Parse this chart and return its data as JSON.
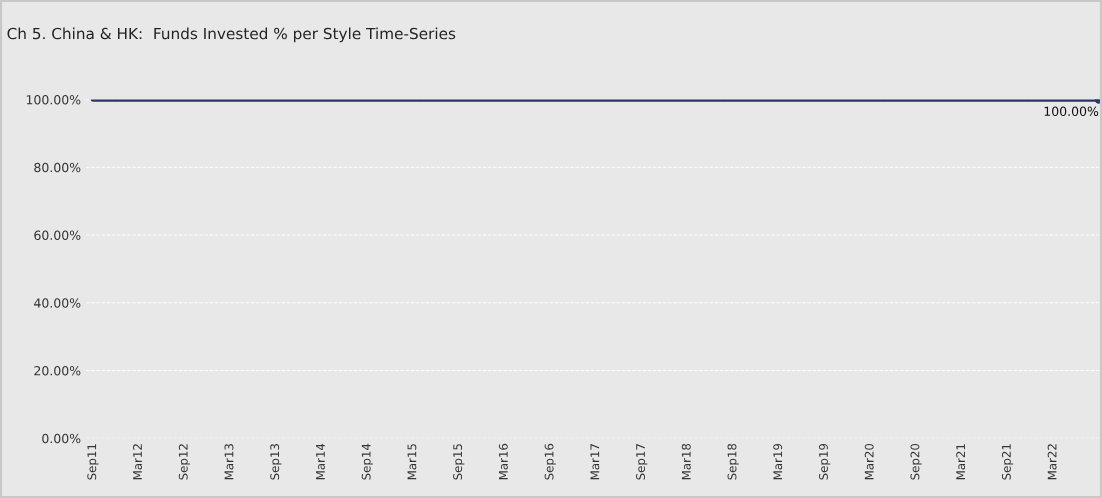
{
  "chart_data": {
    "type": "line",
    "title": "Ch 5. China & HK:  Funds Invested % per Style Time-Series",
    "categories": [
      "Sep11",
      "Mar12",
      "Sep12",
      "Mar13",
      "Sep13",
      "Mar14",
      "Sep14",
      "Mar15",
      "Sep15",
      "Mar16",
      "Sep16",
      "Mar17",
      "Sep17",
      "Mar18",
      "Sep18",
      "Mar19",
      "Sep19",
      "Mar20",
      "Sep20",
      "Mar21",
      "Sep21",
      "Mar22",
      null
    ],
    "series": [
      {
        "color": "#2b3560",
        "values": [
          100,
          100,
          100,
          100,
          100,
          100,
          100,
          100,
          100,
          100,
          100,
          100,
          100,
          100,
          100,
          100,
          100,
          100,
          100,
          100,
          100,
          100,
          100
        ],
        "value_labels": [
          null,
          null,
          null,
          null,
          null,
          null,
          null,
          null,
          null,
          null,
          null,
          null,
          null,
          null,
          null,
          null,
          null,
          null,
          null,
          null,
          null,
          null,
          "100.00%"
        ]
      }
    ],
    "ylim": [
      0,
      100
    ],
    "yticks": [
      {
        "value": 0,
        "label": "0.00%"
      },
      {
        "value": 20,
        "label": "20.00%"
      },
      {
        "value": 40,
        "label": "40.00%"
      },
      {
        "value": 60,
        "label": "60.00%"
      },
      {
        "value": 80,
        "label": "80.00%"
      },
      {
        "value": 100,
        "label": "100.00%"
      }
    ],
    "grid": "y",
    "legend": false
  }
}
